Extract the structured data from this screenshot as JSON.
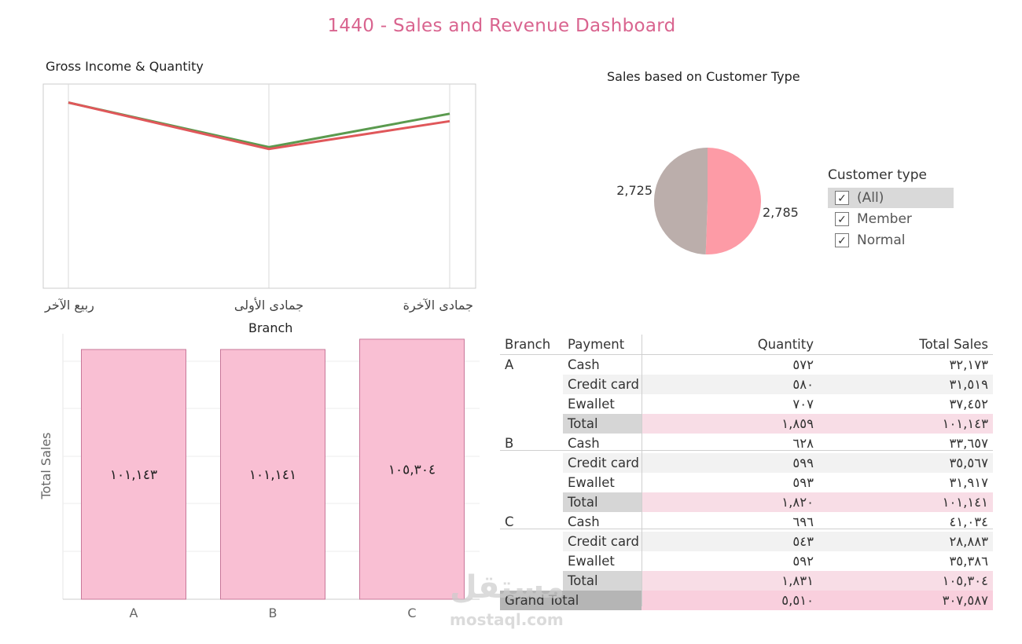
{
  "title": "1440 - Sales and Revenue Dashboard",
  "colors": {
    "title": "#d9648f",
    "line_green": "#5a9a4e",
    "line_red": "#e0575a",
    "pie_member": "#fd9ba6",
    "pie_normal": "#bbaeab",
    "bar_fill": "#f9bfd3",
    "bar_stroke": "#c8789a"
  },
  "legend": {
    "title": "Customer type",
    "items": [
      {
        "label": "(All)",
        "checked": "✓"
      },
      {
        "label": "Member",
        "checked": "✓"
      },
      {
        "label": "Normal",
        "checked": "✓"
      }
    ]
  },
  "chart_data": [
    {
      "type": "line",
      "title": "Gross Income & Quantity",
      "categories": [
        "ربيع الآخر",
        "جمادى الأولى",
        "جمادى الآخرة"
      ],
      "series": [
        {
          "values": [
            0.5,
            0.38,
            0.47
          ]
        },
        {
          "values": [
            0.5,
            0.375,
            0.45
          ]
        }
      ],
      "ylim": [
        0,
        0.55
      ],
      "grid": "vertical"
    },
    {
      "type": "pie",
      "title": "Sales based on Customer Type",
      "slices": [
        {
          "label": "Member",
          "value": 2785,
          "display": "2,785"
        },
        {
          "label": "Normal",
          "value": 2725,
          "display": "2,725"
        }
      ]
    },
    {
      "type": "bar",
      "title": "Branch",
      "ylabel": "Total Sales",
      "categories": [
        "A",
        "B",
        "C"
      ],
      "values": [
        101143,
        101141,
        105304
      ],
      "labels": [
        "١٠١,١٤٣",
        "١٠١,١٤١",
        "١٠٥,٣٠٤"
      ],
      "ylim": [
        0,
        107500
      ],
      "grid": "horizontal"
    },
    {
      "type": "table",
      "columns": [
        "Branch",
        "Payment",
        "Quantity",
        "Total Sales"
      ],
      "groups": [
        {
          "branch": "A",
          "rows": [
            {
              "payment": "Cash",
              "quantity": "٥٧٢",
              "sales": "٣٢,١٧٣"
            },
            {
              "payment": "Credit card",
              "quantity": "٥٨٠",
              "sales": "٣١,٥١٩"
            },
            {
              "payment": "Ewallet",
              "quantity": "٧٠٧",
              "sales": "٣٧,٤٥٢"
            }
          ],
          "total": {
            "label": "Total",
            "quantity": "١,٨٥٩",
            "sales": "١٠١,١٤٣"
          }
        },
        {
          "branch": "B",
          "rows": [
            {
              "payment": "Cash",
              "quantity": "٦٢٨",
              "sales": "٣٣,٦٥٧"
            },
            {
              "payment": "Credit card",
              "quantity": "٥٩٩",
              "sales": "٣٥,٥٦٧"
            },
            {
              "payment": "Ewallet",
              "quantity": "٥٩٣",
              "sales": "٣١,٩١٧"
            }
          ],
          "total": {
            "label": "Total",
            "quantity": "١,٨٢٠",
            "sales": "١٠١,١٤١"
          }
        },
        {
          "branch": "C",
          "rows": [
            {
              "payment": "Cash",
              "quantity": "٦٩٦",
              "sales": "٤١,٠٣٤"
            },
            {
              "payment": "Credit card",
              "quantity": "٥٤٣",
              "sales": "٢٨,٨٨٣"
            },
            {
              "payment": "Ewallet",
              "quantity": "٥٩٢",
              "sales": "٣٥,٣٨٦"
            }
          ],
          "total": {
            "label": "Total",
            "quantity": "١,٨٣١",
            "sales": "١٠٥,٣٠٤"
          }
        }
      ],
      "grand_total": {
        "label": "Grand Total",
        "quantity": "٥,٥١٠",
        "sales": "٣٠٧,٥٨٧"
      }
    }
  ],
  "watermark": {
    "logo": "مستقل",
    "url": "mostaql.com"
  }
}
